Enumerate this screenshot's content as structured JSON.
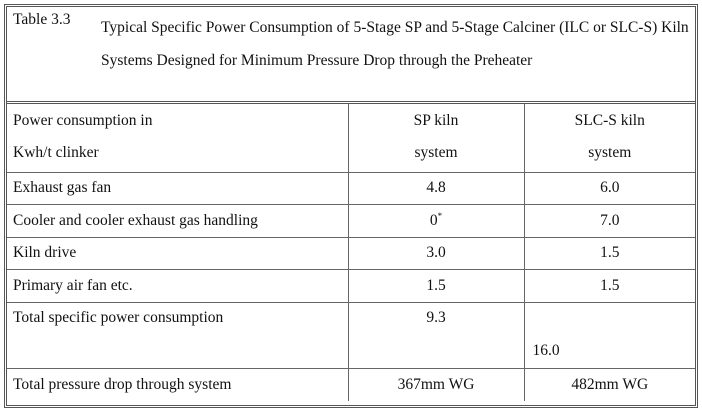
{
  "caption": {
    "label": "Table 3.3",
    "title": "Typical Specific Power Consumption of 5-Stage SP and 5-Stage Calciner (ILC or SLC-S) Kiln Systems Designed for Minimum Pressure Drop through the Preheater"
  },
  "table": {
    "header": [
      [
        "Power consumption in",
        "Kwh/t clinker"
      ],
      [
        "SP kiln",
        "system"
      ],
      [
        "SLC-S kiln",
        "system"
      ]
    ],
    "rows": [
      [
        "Exhaust gas fan",
        "4.8",
        "6.0"
      ],
      [
        "Cooler and cooler exhaust gas handling",
        {
          "text": "0",
          "note": "*"
        },
        "7.0"
      ],
      [
        "Kiln drive",
        "3.0",
        "1.5"
      ],
      [
        "Primary air fan etc.",
        "1.5",
        "1.5"
      ],
      [
        "Total specific power consumption",
        "9.3",
        "16.0"
      ],
      [
        "Total pressure drop through system",
        "367mm WG",
        "482mm WG"
      ]
    ]
  }
}
